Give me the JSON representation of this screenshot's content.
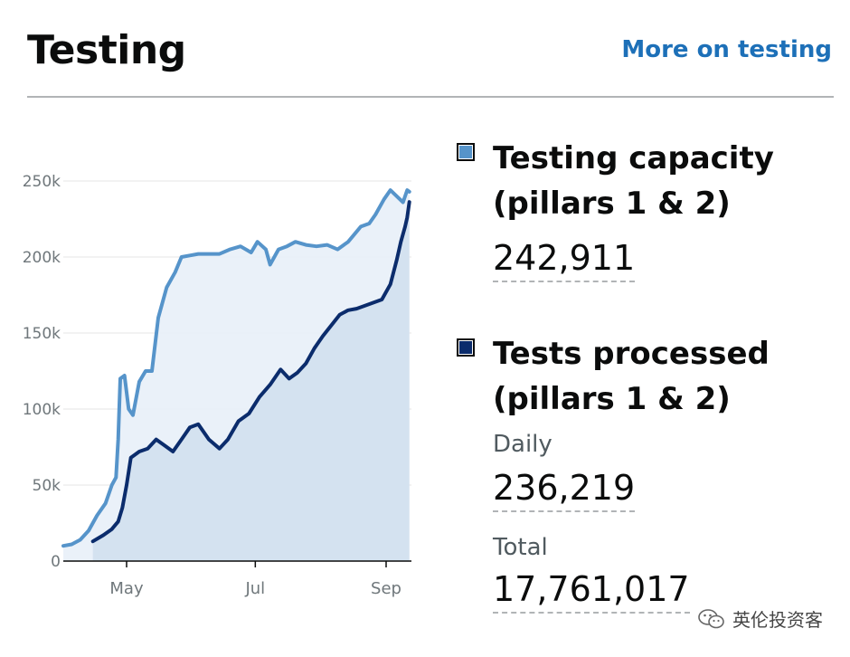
{
  "header": {
    "title": "Testing",
    "more_link": "More on testing"
  },
  "legend": {
    "capacity": {
      "title_line1": "Testing capacity",
      "title_line2": "(pillars 1 & 2)",
      "value": "242,911",
      "color": "#5694ca"
    },
    "processed": {
      "title_line1": "Tests processed",
      "title_line2": "(pillars 1 & 2)",
      "daily_label": "Daily",
      "daily_value": "236,219",
      "total_label": "Total",
      "total_value": "17,761,017",
      "color": "#0b2c6c"
    }
  },
  "watermark": {
    "text": "英伦投资客",
    "icon": "wechat-icon"
  },
  "chart_data": {
    "type": "line",
    "y_ticks": [
      "0",
      "50k",
      "100k",
      "150k",
      "200k",
      "250k"
    ],
    "y_tick_values": [
      0,
      50000,
      100000,
      150000,
      200000,
      250000
    ],
    "x_ticks": [
      "May",
      "Jul",
      "Sep"
    ],
    "x_tick_dates": [
      "2020-05-01",
      "2020-07-01",
      "2020-09-01"
    ],
    "x_range": [
      "2020-04-01",
      "2020-09-13"
    ],
    "ylim": [
      0,
      250000
    ],
    "grid": "horizontal",
    "series": [
      {
        "name": "Testing capacity",
        "color": "#5694ca",
        "fill": "#e8f0f8",
        "x": [
          "2020-04-01",
          "2020-04-05",
          "2020-04-09",
          "2020-04-13",
          "2020-04-17",
          "2020-04-21",
          "2020-04-24",
          "2020-04-26",
          "2020-04-27",
          "2020-04-28",
          "2020-04-30",
          "2020-05-02",
          "2020-05-04",
          "2020-05-07",
          "2020-05-10",
          "2020-05-13",
          "2020-05-16",
          "2020-05-20",
          "2020-05-24",
          "2020-05-27",
          "2020-05-31",
          "2020-06-04",
          "2020-06-09",
          "2020-06-14",
          "2020-06-19",
          "2020-06-24",
          "2020-06-29",
          "2020-07-02",
          "2020-07-06",
          "2020-07-08",
          "2020-07-12",
          "2020-07-16",
          "2020-07-20",
          "2020-07-25",
          "2020-07-30",
          "2020-08-04",
          "2020-08-09",
          "2020-08-14",
          "2020-08-17",
          "2020-08-20",
          "2020-08-24",
          "2020-08-27",
          "2020-08-31",
          "2020-09-03",
          "2020-09-06",
          "2020-09-09",
          "2020-09-11",
          "2020-09-12"
        ],
        "values": [
          10000,
          11000,
          14000,
          20000,
          30000,
          38000,
          50000,
          55000,
          80000,
          120000,
          122000,
          100000,
          96000,
          118000,
          125000,
          125000,
          160000,
          180000,
          190000,
          200000,
          201000,
          202000,
          202000,
          202000,
          205000,
          207000,
          203000,
          210000,
          205000,
          195000,
          205000,
          207000,
          210000,
          208000,
          207000,
          208000,
          205000,
          210000,
          215000,
          220000,
          222000,
          228000,
          238000,
          244000,
          240000,
          236000,
          244000,
          242911
        ]
      },
      {
        "name": "Tests processed",
        "color": "#0b2c6c",
        "fill": "#d2e0ee",
        "x": [
          "2020-04-15",
          "2020-04-20",
          "2020-04-24",
          "2020-04-27",
          "2020-04-29",
          "2020-05-01",
          "2020-05-03",
          "2020-05-07",
          "2020-05-11",
          "2020-05-15",
          "2020-05-19",
          "2020-05-23",
          "2020-05-27",
          "2020-05-31",
          "2020-06-04",
          "2020-06-09",
          "2020-06-14",
          "2020-06-18",
          "2020-06-23",
          "2020-06-28",
          "2020-07-03",
          "2020-07-08",
          "2020-07-13",
          "2020-07-17",
          "2020-07-21",
          "2020-07-25",
          "2020-07-29",
          "2020-08-02",
          "2020-08-06",
          "2020-08-10",
          "2020-08-14",
          "2020-08-18",
          "2020-08-22",
          "2020-08-26",
          "2020-08-30",
          "2020-09-03",
          "2020-09-06",
          "2020-09-08",
          "2020-09-10",
          "2020-09-11",
          "2020-09-12"
        ],
        "values": [
          13000,
          17000,
          21000,
          26000,
          35000,
          50000,
          68000,
          72000,
          74000,
          80000,
          76000,
          72000,
          80000,
          88000,
          90000,
          80000,
          74000,
          80000,
          92000,
          97000,
          108000,
          116000,
          126000,
          120000,
          124000,
          130000,
          140000,
          148000,
          155000,
          162000,
          165000,
          166000,
          168000,
          170000,
          172000,
          182000,
          198000,
          210000,
          220000,
          226000,
          236219
        ]
      }
    ]
  }
}
